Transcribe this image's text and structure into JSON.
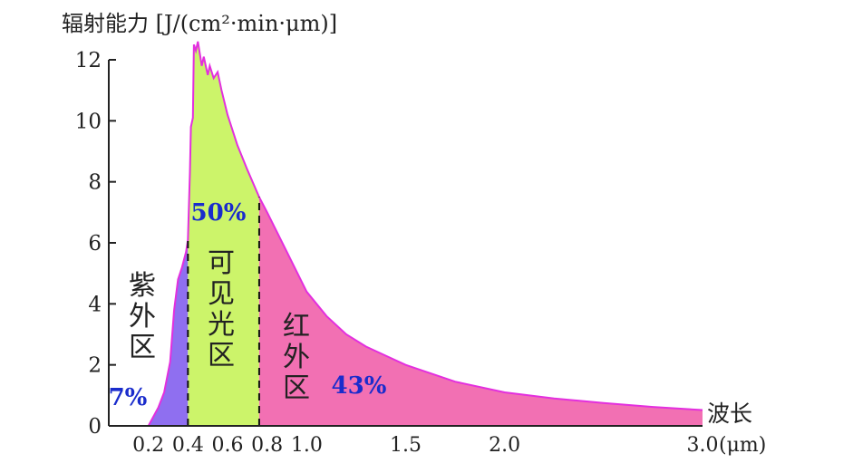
{
  "chart_data": {
    "type": "area",
    "ylabel": "辐射能力 [J/(cm²·min·μm)]",
    "xlabel": "波长",
    "x_unit": "(μm)",
    "xlim": [
      0.0,
      3.0
    ],
    "ylim": [
      0,
      12
    ],
    "yticks": [
      {
        "value": 0,
        "label": "0"
      },
      {
        "value": 2,
        "label": "2"
      },
      {
        "value": 4,
        "label": "4"
      },
      {
        "value": 6,
        "label": "6"
      },
      {
        "value": 8,
        "label": "8"
      },
      {
        "value": 10,
        "label": "10"
      },
      {
        "value": 12,
        "label": "12"
      }
    ],
    "xticks": [
      {
        "value": 0.2,
        "label": "0.2"
      },
      {
        "value": 0.4,
        "label": "0.4"
      },
      {
        "value": 0.6,
        "label": "0.6"
      },
      {
        "value": 0.8,
        "label": "0.8"
      },
      {
        "value": 1.0,
        "label": "1.0"
      },
      {
        "value": 1.5,
        "label": "1.5"
      },
      {
        "value": 2.0,
        "label": "2.0"
      },
      {
        "value": 3.0,
        "label": "3.0"
      }
    ],
    "boundaries": [
      0.4,
      0.76
    ],
    "spectrum": [
      [
        0.2,
        0.0
      ],
      [
        0.25,
        0.6
      ],
      [
        0.28,
        1.1
      ],
      [
        0.31,
        2.1
      ],
      [
        0.33,
        3.8
      ],
      [
        0.35,
        4.8
      ],
      [
        0.37,
        5.2
      ],
      [
        0.39,
        5.7
      ],
      [
        0.4,
        6.1
      ],
      [
        0.41,
        8.3
      ],
      [
        0.415,
        9.8
      ],
      [
        0.425,
        10.1
      ],
      [
        0.43,
        12.5
      ],
      [
        0.44,
        12.3
      ],
      [
        0.45,
        12.6
      ],
      [
        0.47,
        11.8
      ],
      [
        0.48,
        12.1
      ],
      [
        0.5,
        11.5
      ],
      [
        0.51,
        11.8
      ],
      [
        0.53,
        11.4
      ],
      [
        0.55,
        11.6
      ],
      [
        0.57,
        11.0
      ],
      [
        0.6,
        10.2
      ],
      [
        0.65,
        9.2
      ],
      [
        0.7,
        8.4
      ],
      [
        0.76,
        7.5
      ],
      [
        0.8,
        7.0
      ],
      [
        0.9,
        5.7
      ],
      [
        1.0,
        4.4
      ],
      [
        1.1,
        3.6
      ],
      [
        1.2,
        3.0
      ],
      [
        1.3,
        2.6
      ],
      [
        1.4,
        2.3
      ],
      [
        1.5,
        2.0
      ],
      [
        1.75,
        1.45
      ],
      [
        2.0,
        1.1
      ],
      [
        2.25,
        0.9
      ],
      [
        2.5,
        0.75
      ],
      [
        2.75,
        0.62
      ],
      [
        3.0,
        0.52
      ]
    ],
    "regions": [
      {
        "name": "紫外区",
        "range": [
          0.2,
          0.4
        ],
        "percent": "7%",
        "color": "#8f6ff0"
      },
      {
        "name": "可见光区",
        "range": [
          0.4,
          0.76
        ],
        "percent": "50%",
        "color": "#ccf46a"
      },
      {
        "name": "红外区",
        "range": [
          0.76,
          3.0
        ],
        "percent": "43%",
        "color": "#f270b3"
      }
    ],
    "curve_color": "#e32fde",
    "percent_color": "#1a2ccc"
  }
}
